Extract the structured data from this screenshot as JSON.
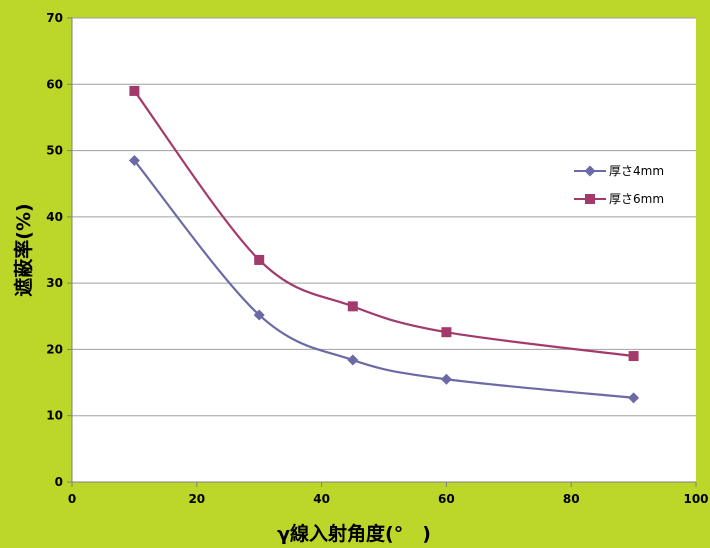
{
  "chart_data": {
    "type": "line",
    "xlabel": "γ線入射角度(°　)",
    "ylabel": "遮蔽率(%)",
    "xlim": [
      0,
      100
    ],
    "ylim": [
      0,
      70
    ],
    "xticks": [
      0,
      20,
      40,
      60,
      80,
      100
    ],
    "yticks": [
      0,
      10,
      20,
      30,
      40,
      50,
      60,
      70
    ],
    "grid": "horizontal",
    "legend_position": "right",
    "series": [
      {
        "name": "厚さ4mm",
        "marker": "diamond",
        "color": "#6b6aa6",
        "x": [
          10,
          30,
          45,
          60,
          90
        ],
        "y": [
          48.5,
          25.2,
          18.4,
          15.5,
          12.7
        ]
      },
      {
        "name": "厚さ6mm",
        "marker": "square",
        "color": "#a33a6c",
        "x": [
          10,
          30,
          45,
          60,
          90
        ],
        "y": [
          59.0,
          33.5,
          26.5,
          22.6,
          19.0
        ]
      }
    ]
  },
  "colors": {
    "background": "#bdd62a",
    "plot_area": "#ffffff",
    "grid": "#a0a0a0"
  }
}
